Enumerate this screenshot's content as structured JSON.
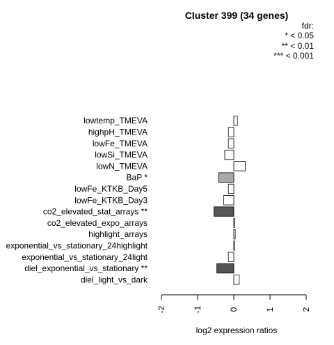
{
  "chart_data": {
    "type": "bar",
    "orientation": "horizontal",
    "title": "Cluster 399 (34 genes)",
    "xlabel": "log2 expression ratios",
    "ylabel": "",
    "xlim": [
      -2,
      2
    ],
    "xticks": [
      -2,
      -1,
      0,
      1,
      2
    ],
    "xtick_labels": [
      "-2",
      "-1",
      "0",
      "1",
      "2"
    ],
    "grid": false,
    "legend": {
      "placement": "top-right",
      "title": "fdr:",
      "entries": [
        "* < 0.05",
        "** < 0.01",
        "*** < 0.001"
      ]
    },
    "categories": [
      "lowtemp_TMEVA",
      "highpH_TMEVA",
      "lowFe_TMEVA",
      "lowSi_TMEVA",
      "lowN_TMEVA",
      "BaP *",
      "lowFe_KTKB_Day5",
      "lowFe_KTKB_Day3",
      "co2_elevated_stat_arrays **",
      "co2_elevated_expo_arrays",
      "highlight_arrays",
      "exponential_vs_stationary_24highlight",
      "exponential_vs_stationary_24light",
      "diel_exponential_vs_stationary **",
      "diel_light_vs_dark"
    ],
    "values": [
      0.1,
      -0.15,
      -0.15,
      -0.25,
      0.32,
      -0.42,
      -0.15,
      -0.28,
      -0.55,
      0.01,
      0.04,
      0.01,
      -0.15,
      -0.47,
      0.15
    ],
    "bar_colors": [
      "#ffffff",
      "#ffffff",
      "#ffffff",
      "#ffffff",
      "#ffffff",
      "#a9a9a9",
      "#ffffff",
      "#ffffff",
      "#555555",
      "#ffffff",
      "#ffffff",
      "#ffffff",
      "#ffffff",
      "#555555",
      "#ffffff"
    ]
  }
}
